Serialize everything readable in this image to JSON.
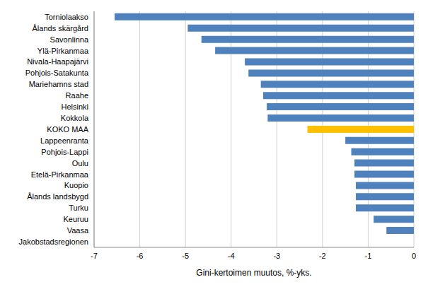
{
  "chart_data": {
    "type": "bar",
    "orientation": "horizontal",
    "x_label": "Gini-kertoimen muutos, %-yks.",
    "categories": [
      "Torniolaakso",
      "Ålands skärgård",
      "Savonlinna",
      "Ylä-Pirkanmaa",
      "Nivala-Haapajärvi",
      "Pohjois-Satakunta",
      "Mariehamns stad",
      "Raahe",
      "Helsinki",
      "Kokkola",
      "KOKO MAA",
      "Lappeenranta",
      "Pohjois-Lappi",
      "Oulu",
      "Etelä-Pirkanmaa",
      "Kuopio",
      "Ålands landsbygd",
      "Turku",
      "Keuruu",
      "Vaasa",
      "Jakobstadsregionen"
    ],
    "values": [
      -6.55,
      -4.95,
      -4.65,
      -4.35,
      -3.7,
      -3.62,
      -3.35,
      -3.3,
      -3.22,
      -3.2,
      -2.33,
      -1.5,
      -1.37,
      -1.3,
      -1.3,
      -1.27,
      -1.27,
      -1.27,
      -0.88,
      -0.6,
      0
    ],
    "colors": [
      "#4f81bd",
      "#4f81bd",
      "#4f81bd",
      "#4f81bd",
      "#4f81bd",
      "#4f81bd",
      "#4f81bd",
      "#4f81bd",
      "#4f81bd",
      "#4f81bd",
      "#ffc000",
      "#4f81bd",
      "#4f81bd",
      "#4f81bd",
      "#4f81bd",
      "#4f81bd",
      "#4f81bd",
      "#4f81bd",
      "#4f81bd",
      "#4f81bd",
      "#4f81bd"
    ],
    "xlim": [
      -7,
      0
    ],
    "xticks": [
      -7,
      -6,
      -5,
      -4,
      -3,
      -2,
      -1,
      0
    ],
    "grid": true
  }
}
